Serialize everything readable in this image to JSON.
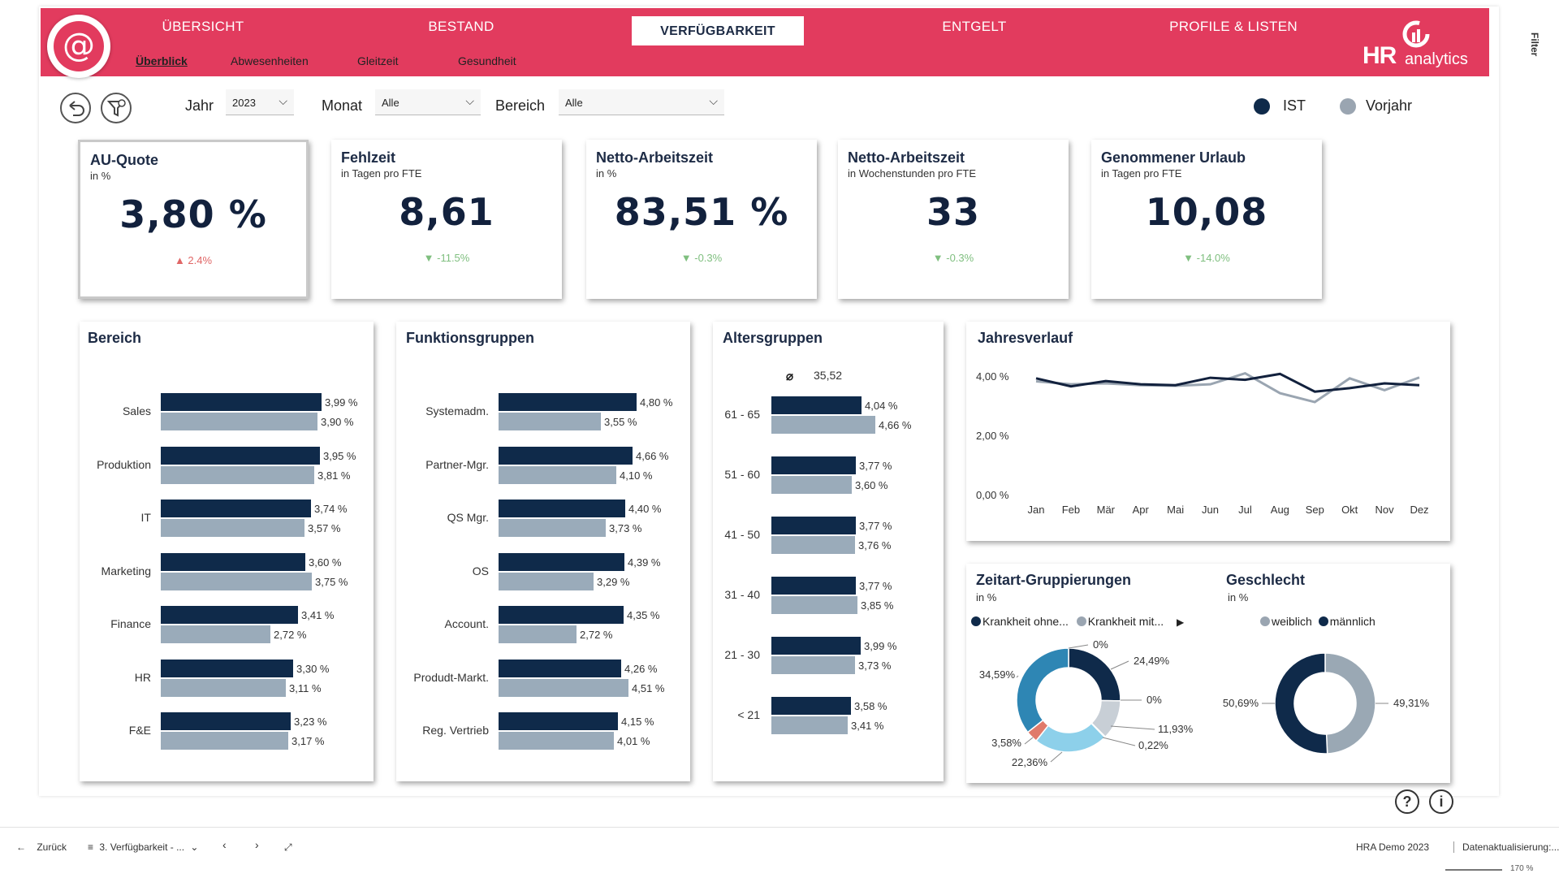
{
  "nav": {
    "main_tabs": [
      "ÜBERSICHT",
      "BESTAND",
      "VERFÜGBARKEIT",
      "ENTGELT",
      "PROFILE & LISTEN"
    ],
    "sub_tabs": [
      "Überblick",
      "Abwesenheiten",
      "Gleitzeit",
      "Gesundheit"
    ],
    "logo_hr": "HR",
    "logo_analytics": "analytics",
    "side_filter": "Filter"
  },
  "filters": {
    "year_label": "Jahr",
    "year_value": "2023",
    "month_label": "Monat",
    "month_value": "Alle",
    "area_label": "Bereich",
    "area_value": "Alle",
    "legend_ist": "IST",
    "legend_vj": "Vorjahr"
  },
  "kpis": [
    {
      "title": "AU-Quote",
      "sub": "in %",
      "value": "3,80 %",
      "delta": "▲ 2.4%",
      "trend": "up"
    },
    {
      "title": "Fehlzeit",
      "sub": "in Tagen pro FTE",
      "value": "8,61",
      "delta": "▼ -11.5%",
      "trend": "down"
    },
    {
      "title": "Netto-Arbeitszeit",
      "sub": "in %",
      "value": "83,51 %",
      "delta": "▼ -0.3%",
      "trend": "down"
    },
    {
      "title": "Netto-Arbeitszeit",
      "sub": "in Wochenstunden pro FTE",
      "value": "33",
      "delta": "▼ -0.3%",
      "trend": "down"
    },
    {
      "title": "Genommener Urlaub",
      "sub": "in Tagen pro FTE",
      "value": "10,08",
      "delta": "▼ -14.0%",
      "trend": "down"
    }
  ],
  "bereich": {
    "title": "Bereich",
    "rows": [
      {
        "label": "Sales",
        "ist": "3,99 %",
        "vj": "3,90 %"
      },
      {
        "label": "Produktion",
        "ist": "3,95 %",
        "vj": "3,81 %"
      },
      {
        "label": "IT",
        "ist": "3,74 %",
        "vj": "3,57 %"
      },
      {
        "label": "Marketing",
        "ist": "3,60 %",
        "vj": "3,75 %"
      },
      {
        "label": "Finance",
        "ist": "3,41 %",
        "vj": "2,72 %"
      },
      {
        "label": "HR",
        "ist": "3,30 %",
        "vj": "3,11 %"
      },
      {
        "label": "F&E",
        "ist": "3,23 %",
        "vj": "3,17 %"
      }
    ]
  },
  "funktion": {
    "title": "Funktionsgruppen",
    "rows": [
      {
        "label": "Systemadm.",
        "ist": "4,80 %",
        "vj": "3,55 %"
      },
      {
        "label": "Partner-Mgr.",
        "ist": "4,66 %",
        "vj": "4,10 %"
      },
      {
        "label": "QS Mgr.",
        "ist": "4,40 %",
        "vj": "3,73 %"
      },
      {
        "label": "OS",
        "ist": "4,39 %",
        "vj": "3,29 %"
      },
      {
        "label": "Account.",
        "ist": "4,35 %",
        "vj": "2,72 %"
      },
      {
        "label": "Produdt-Markt.",
        "ist": "4,26 %",
        "vj": "4,51 %"
      },
      {
        "label": "Reg. Vertrieb",
        "ist": "4,15 %",
        "vj": "4,01 %"
      }
    ]
  },
  "alter": {
    "title": "Altersgruppen",
    "avg_symbol": "⌀",
    "avg": "35,52",
    "rows": [
      {
        "label": "61 - 65",
        "ist": "4,04 %",
        "vj": "4,66 %"
      },
      {
        "label": "51 - 60",
        "ist": "3,77 %",
        "vj": "3,60 %"
      },
      {
        "label": "41 - 50",
        "ist": "3,77 %",
        "vj": "3,76 %"
      },
      {
        "label": "31 - 40",
        "ist": "3,77 %",
        "vj": "3,85 %"
      },
      {
        "label": "21 - 30",
        "ist": "3,99 %",
        "vj": "3,73 %"
      },
      {
        "label": "< 21",
        "ist": "3,58 %",
        "vj": "3,41 %"
      }
    ]
  },
  "chart_data": [
    {
      "type": "bar",
      "title": "Bereich",
      "orientation": "horizontal",
      "categories": [
        "Sales",
        "Produktion",
        "IT",
        "Marketing",
        "Finance",
        "HR",
        "F&E"
      ],
      "series": [
        {
          "name": "IST",
          "values": [
            3.99,
            3.95,
            3.74,
            3.6,
            3.41,
            3.3,
            3.23
          ]
        },
        {
          "name": "Vorjahr",
          "values": [
            3.9,
            3.81,
            3.57,
            3.75,
            2.72,
            3.11,
            3.17
          ]
        }
      ]
    },
    {
      "type": "bar",
      "title": "Funktionsgruppen",
      "orientation": "horizontal",
      "categories": [
        "Systemadm.",
        "Partner-Mgr.",
        "QS Mgr.",
        "OS",
        "Account.",
        "Produdt-Markt.",
        "Reg. Vertrieb"
      ],
      "series": [
        {
          "name": "IST",
          "values": [
            4.8,
            4.66,
            4.4,
            4.39,
            4.35,
            4.26,
            4.15
          ]
        },
        {
          "name": "Vorjahr",
          "values": [
            3.55,
            4.1,
            3.73,
            3.29,
            2.72,
            4.51,
            4.01
          ]
        }
      ]
    },
    {
      "type": "bar",
      "title": "Altersgruppen",
      "orientation": "horizontal",
      "categories": [
        "61 - 65",
        "51 - 60",
        "41 - 50",
        "31 - 40",
        "21 - 30",
        "< 21"
      ],
      "series": [
        {
          "name": "IST",
          "values": [
            4.04,
            3.77,
            3.77,
            3.77,
            3.99,
            3.58
          ]
        },
        {
          "name": "Vorjahr",
          "values": [
            4.66,
            3.6,
            3.76,
            3.85,
            3.73,
            3.41
          ]
        }
      ]
    },
    {
      "type": "line",
      "title": "Jahresverlauf",
      "x": [
        "Jan",
        "Feb",
        "Mär",
        "Apr",
        "Mai",
        "Jun",
        "Jul",
        "Aug",
        "Sep",
        "Okt",
        "Nov",
        "Dez"
      ],
      "y_ticks": [
        "4,00 %",
        "2,00 %",
        "0,00 %"
      ],
      "ylim": [
        0,
        4
      ],
      "series": [
        {
          "name": "IST",
          "color": "#12213d",
          "values": [
            3.95,
            3.68,
            3.86,
            3.75,
            3.72,
            3.97,
            3.9,
            4.1,
            3.5,
            3.62,
            3.78,
            3.72
          ]
        },
        {
          "name": "Vorjahr",
          "color": "#9aa5b1",
          "values": [
            3.85,
            3.75,
            3.78,
            3.72,
            3.7,
            3.75,
            4.12,
            3.45,
            3.15,
            3.95,
            3.55,
            3.98
          ]
        }
      ]
    },
    {
      "type": "pie",
      "title": "Zeitart-Gruppierungen",
      "subtitle": "in %",
      "hole": true,
      "legend": [
        "Krankheit ohne...",
        "Krankheit mit..."
      ],
      "slices": [
        {
          "label": "24,49%",
          "value": 24.49,
          "color": "#0f2a4a"
        },
        {
          "label": "0%",
          "value": 0.001,
          "color": "#6a7f96"
        },
        {
          "label": "11,93%",
          "value": 11.93,
          "color": "#c8cfd6"
        },
        {
          "label": "0,22%",
          "value": 0.22,
          "color": "#a9b3bc"
        },
        {
          "label": "22,36%",
          "value": 22.36,
          "color": "#8dd0ea"
        },
        {
          "label": "3,58%",
          "value": 3.58,
          "color": "#e07a6a"
        },
        {
          "label": "34,59%",
          "value": 34.59,
          "color": "#2e86b4"
        },
        {
          "label": "0%",
          "value": 0.001,
          "color": "#6a7f96"
        }
      ]
    },
    {
      "type": "pie",
      "title": "Geschlecht",
      "subtitle": "in %",
      "hole": true,
      "legend": [
        "weiblich",
        "männlich"
      ],
      "slices": [
        {
          "label": "49,31%",
          "value": 49.31,
          "color": "#9aa8b4"
        },
        {
          "label": "50,69%",
          "value": 50.69,
          "color": "#0f2a4a"
        }
      ]
    }
  ],
  "colors": {
    "brand": "#e23b5e",
    "ist": "#0f2a4a",
    "vorjahr": "#9aabba",
    "up": "#e06666",
    "down": "#7fbf7f"
  },
  "bottom": {
    "back": "Zurück",
    "page": "3. Verfügbarkeit - ...",
    "report": "HRA Demo 2023",
    "refresh": "Datenaktualisierung:...",
    "zoom": "170 %"
  },
  "help_icons": [
    "?",
    "i"
  ]
}
